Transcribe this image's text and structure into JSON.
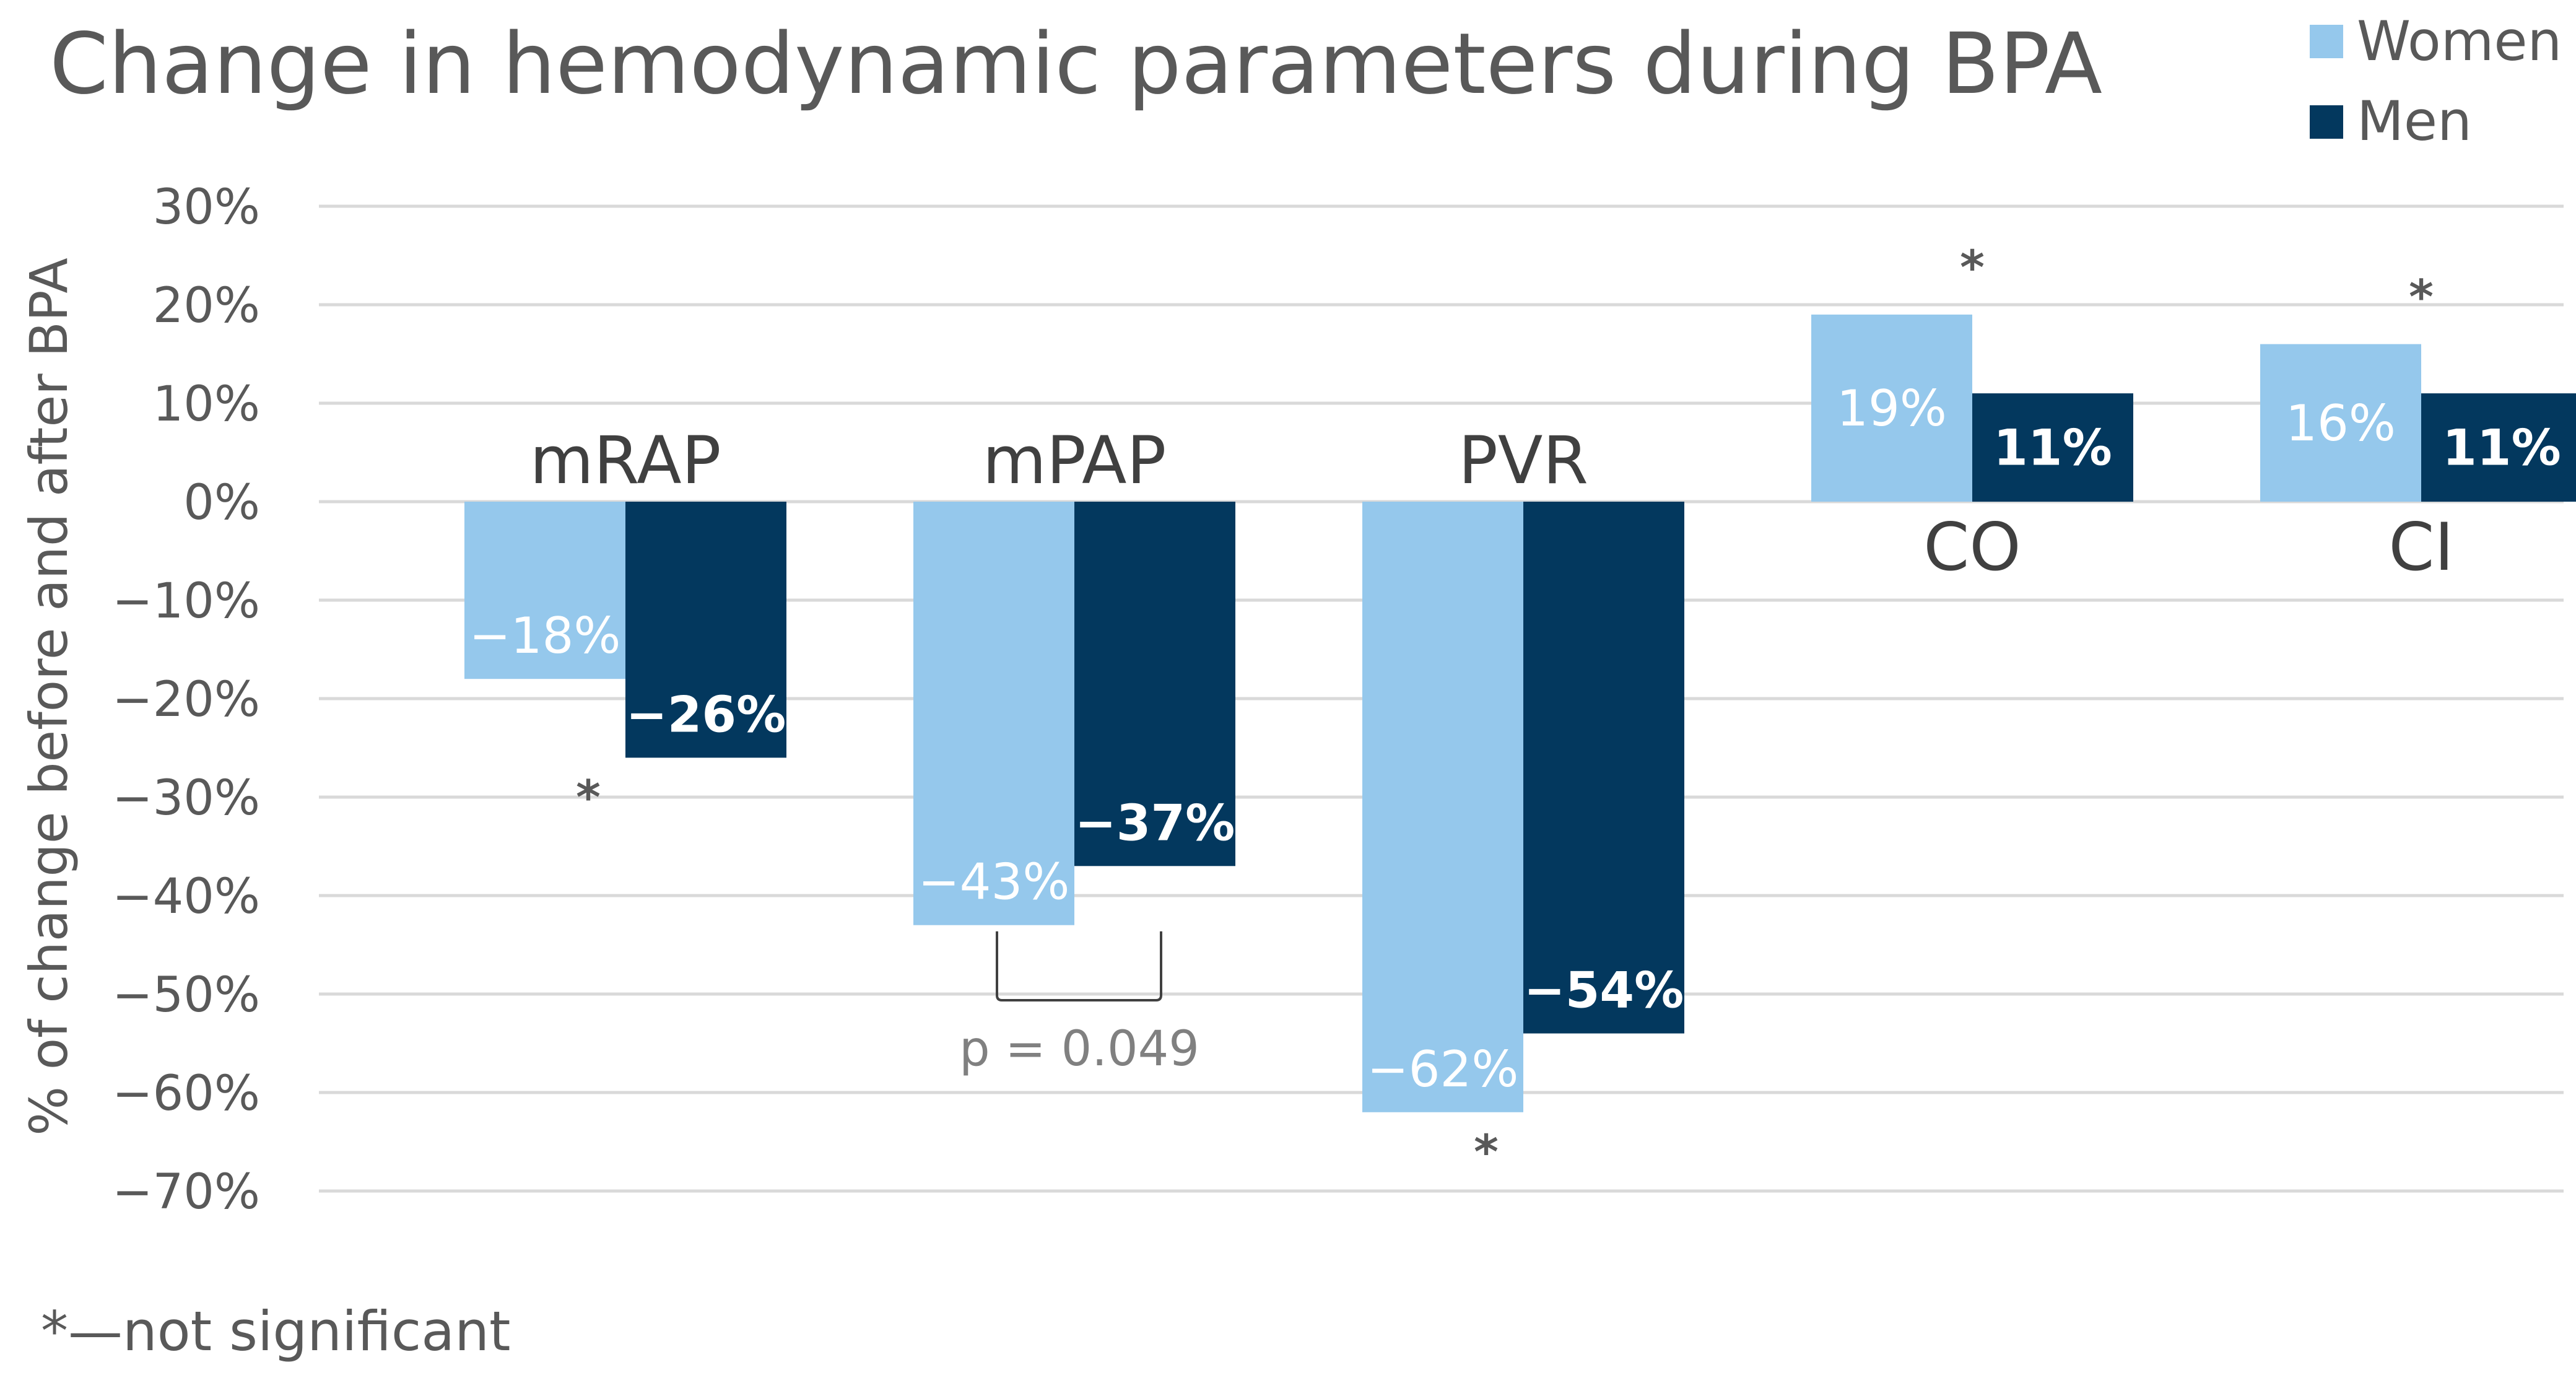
{
  "chart_data": {
    "type": "bar",
    "title": "Change in hemodynamic parameters during BPA",
    "ylabel": "% of change before and after BPA",
    "xlabel": "",
    "ylim": [
      -70,
      30
    ],
    "yticks": [
      30,
      20,
      10,
      0,
      -10,
      -20,
      -30,
      -40,
      -50,
      -60,
      -70
    ],
    "ytick_labels": [
      "30%",
      "20%",
      "10%",
      "0%",
      "−10%",
      "−20%",
      "−30%",
      "−40%",
      "−50%",
      "−60%",
      "−70%"
    ],
    "grid": true,
    "legend_position": "top-right",
    "categories": [
      "mRAP",
      "mPAP",
      "PVR",
      "CO",
      "CI"
    ],
    "series": [
      {
        "name": "Women",
        "color": "#95c8ec",
        "values": [
          -18,
          -43,
          -62,
          19,
          16
        ],
        "labels": [
          "−18%",
          "−43%",
          "−62%",
          "19%",
          "16%"
        ]
      },
      {
        "name": "Men",
        "color": "#03385e",
        "values": [
          -26,
          -37,
          -54,
          11,
          11
        ],
        "labels": [
          "−26%",
          "−37%",
          "−54%",
          "11%",
          "11%"
        ]
      }
    ],
    "annotations": {
      "not_significant_marker": "*",
      "not_significant_categories": [
        "mRAP",
        "PVR",
        "CO",
        "CI"
      ],
      "bracket_category": "mPAP",
      "p_value_text": "p = 0.049",
      "footnote": "*—not significant"
    }
  }
}
